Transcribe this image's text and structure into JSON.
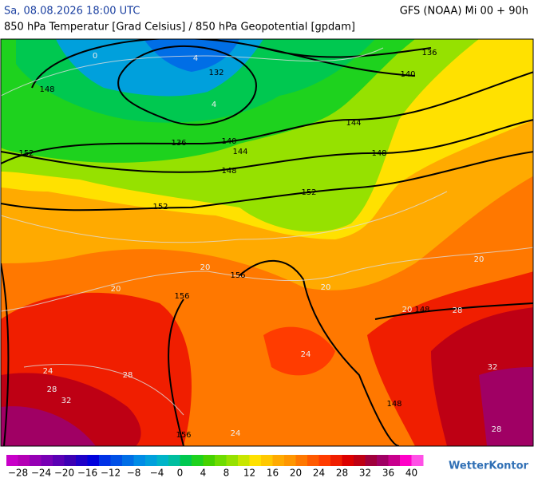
{
  "header": {
    "datetime": "Sa, 08.08.2026 18:00 UTC",
    "model": "GFS (NOAA) Mi 00 + 90h",
    "subtitle": "850 hPa Temperatur [Grad Celsius] / 850 hPa Geopotential [gpdam]"
  },
  "map": {
    "isobar_labels": [
      132,
      136,
      140,
      140,
      144,
      144,
      148,
      148,
      148,
      152,
      152,
      152,
      156,
      156,
      148,
      148,
      156,
      136
    ],
    "isotherm_labels": [
      0,
      4,
      4,
      20,
      20,
      20,
      24,
      24,
      28,
      32,
      28,
      24,
      28,
      32,
      28,
      20,
      20
    ]
  },
  "colorbar": {
    "range": [
      -30,
      42
    ],
    "colors": [
      "#c800c8",
      "#b400b4",
      "#9600b4",
      "#7800b4",
      "#5a00b4",
      "#3c00b4",
      "#1e00c8",
      "#0000dc",
      "#0032e6",
      "#0050e6",
      "#006ee6",
      "#008ce6",
      "#00a0dc",
      "#00b4c8",
      "#00bea0",
      "#00c850",
      "#1ed21e",
      "#46d200",
      "#6edc00",
      "#96e100",
      "#c8e600",
      "#ffe100",
      "#ffc800",
      "#ffaa00",
      "#ff9600",
      "#ff7800",
      "#ff5a00",
      "#ff3c00",
      "#f01e00",
      "#dc0000",
      "#be0014",
      "#a0003c",
      "#a00064",
      "#c8008c",
      "#ff00c8",
      "#ff50e6"
    ],
    "ticks": [
      {
        "value": -28,
        "label": "−28"
      },
      {
        "value": -24,
        "label": "−24"
      },
      {
        "value": -20,
        "label": "−20"
      },
      {
        "value": -16,
        "label": "−16"
      },
      {
        "value": -12,
        "label": "−12"
      },
      {
        "value": -8,
        "label": "−8"
      },
      {
        "value": -4,
        "label": "−4"
      },
      0,
      4,
      8,
      12,
      16,
      20,
      24,
      28,
      32,
      36,
      40
    ]
  },
  "logo": "WetterKontor"
}
